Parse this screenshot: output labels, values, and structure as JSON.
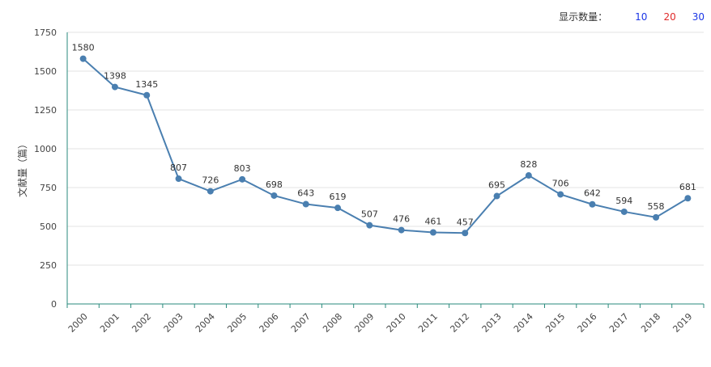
{
  "toolbar": {
    "label": "显示数量：",
    "options": [
      {
        "label": "10",
        "color": "#1a35e6"
      },
      {
        "label": "20",
        "color": "#e02a2a"
      },
      {
        "label": "30",
        "color": "#1a35e6"
      }
    ]
  },
  "chart_data": {
    "type": "line",
    "title": "",
    "xlabel": "",
    "ylabel": "文献量（篇）",
    "ylim": [
      0,
      1750
    ],
    "yticks": [
      0,
      250,
      500,
      750,
      1000,
      1250,
      1500,
      1750
    ],
    "grid": true,
    "line_color": "#4a7fb0",
    "categories": [
      "2000",
      "2001",
      "2002",
      "2003",
      "2004",
      "2005",
      "2006",
      "2007",
      "2008",
      "2009",
      "2010",
      "2011",
      "2012",
      "2013",
      "2014",
      "2015",
      "2016",
      "2017",
      "2018",
      "2019"
    ],
    "series": [
      {
        "values": [
          1580,
          1398,
          1345,
          807,
          726,
          803,
          698,
          643,
          619,
          507,
          476,
          461,
          457,
          695,
          828,
          706,
          642,
          594,
          558,
          681
        ]
      }
    ]
  }
}
